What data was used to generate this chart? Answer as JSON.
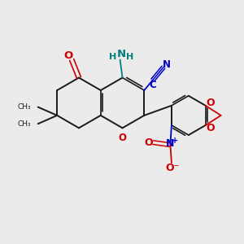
{
  "background_color": "#ebebeb",
  "bond_color": "#1a1a1a",
  "o_color": "#cc0000",
  "n_color": "#008080",
  "cn_color": "#0000cc",
  "no_color": "#cc0000",
  "no_n_color": "#0000cc",
  "figsize": [
    3.0,
    3.0
  ],
  "dpi": 100,
  "xlim": [
    0,
    10
  ],
  "ylim": [
    0,
    10
  ]
}
